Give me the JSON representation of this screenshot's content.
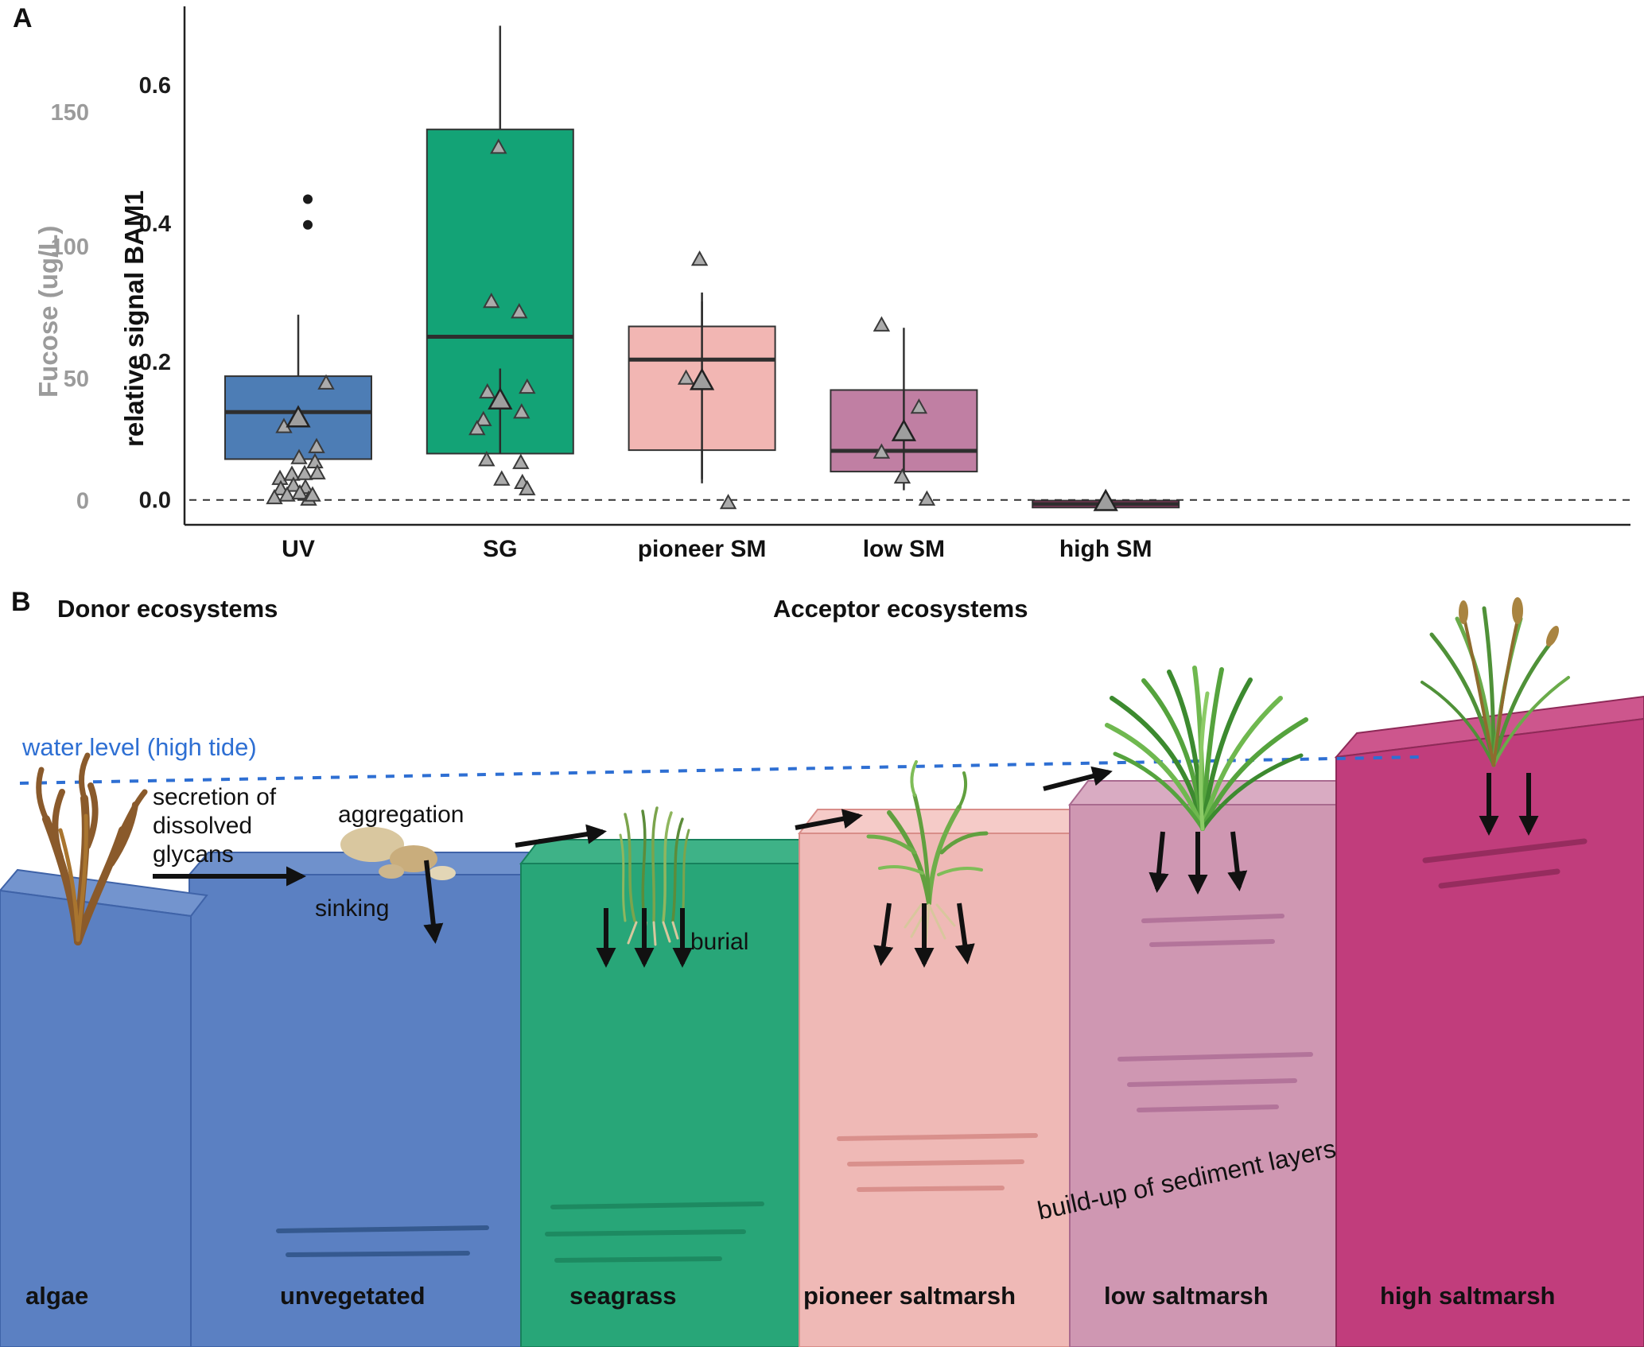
{
  "figure": {
    "panel_a_label": "A",
    "panel_b_label": "B"
  },
  "chart_data": {
    "type": "boxplot",
    "ylabel": "relative signal BAM1",
    "secondary_ylabel": "Fucose (ug/L)",
    "ylim": [
      -0.036,
      0.714
    ],
    "yticks": [
      {
        "label": "0.0",
        "value": 0.0
      },
      {
        "label": "0.2",
        "value": 0.2
      },
      {
        "label": "0.4",
        "value": 0.4
      },
      {
        "label": "0.6",
        "value": 0.6
      }
    ],
    "secondary_yticks": [
      {
        "label": "0",
        "value": 0.0
      },
      {
        "label": "50",
        "value": 0.177
      },
      {
        "label": "100",
        "value": 0.368
      },
      {
        "label": "150",
        "value": 0.562
      }
    ],
    "zero_dashed_line": 0.0,
    "categories": [
      "UV",
      "SG",
      "pioneer SM",
      "low SM",
      "high SM"
    ],
    "boxes": [
      {
        "category": "UV",
        "color": "#4d7db5",
        "q1": 0.059,
        "median": 0.127,
        "q3": 0.179,
        "whisker_low": null,
        "whisker_high": 0.268,
        "outliers": [
          0.435,
          0.398
        ]
      },
      {
        "category": "SG",
        "color": "#13a376",
        "q1": 0.067,
        "median": 0.236,
        "q3": 0.536,
        "whisker_low": null,
        "whisker_high": 0.686,
        "outliers": []
      },
      {
        "category": "pioneer SM",
        "color": "#f2b6b3",
        "q1": 0.072,
        "median": 0.203,
        "q3": 0.251,
        "whisker_low": 0.024,
        "whisker_high": 0.287,
        "outliers": []
      },
      {
        "category": "low SM",
        "color": "#c07fa3",
        "q1": 0.041,
        "median": 0.071,
        "q3": 0.159,
        "whisker_low": 0.014,
        "whisker_high": 0.249,
        "outliers": []
      },
      {
        "category": "high SM",
        "color": "#a8396b",
        "q1": -0.011,
        "median": -0.006,
        "q3": -0.001,
        "whisker_low": null,
        "whisker_high": null,
        "outliers": []
      }
    ],
    "means": [
      {
        "category": "UV",
        "value": 0.117,
        "err_low": null,
        "err_high": null
      },
      {
        "category": "SG",
        "value": 0.143,
        "err_low": 0.067,
        "err_high": 0.19
      },
      {
        "category": "pioneer SM",
        "value": 0.171,
        "err_low": 0.03,
        "err_high": 0.3
      },
      {
        "category": "low SM",
        "value": 0.097,
        "err_low": 0.033,
        "err_high": 0.16
      },
      {
        "category": "high SM",
        "value": -0.004,
        "err_low": null,
        "err_high": null
      }
    ],
    "points": [
      {
        "category": "UV",
        "values": [
          [
            35,
            0.168
          ],
          [
            -18,
            0.105
          ],
          [
            23,
            0.076
          ],
          [
            1,
            0.06
          ],
          [
            21,
            0.054
          ],
          [
            -23,
            0.03
          ],
          [
            -8,
            0.036
          ],
          [
            8,
            0.037
          ],
          [
            24,
            0.038
          ],
          [
            -22,
            0.015
          ],
          [
            -6,
            0.02
          ],
          [
            9,
            0.017
          ],
          [
            -30,
            0.002
          ],
          [
            -14,
            0.006
          ],
          [
            2,
            0.009
          ],
          [
            13,
            0.0
          ],
          [
            18,
            0.006
          ]
        ]
      },
      {
        "category": "SG",
        "values": [
          [
            -2,
            0.509
          ],
          [
            -11,
            0.286
          ],
          [
            24,
            0.271
          ],
          [
            -16,
            0.155
          ],
          [
            34,
            0.162
          ],
          [
            -21,
            0.115
          ],
          [
            27,
            0.126
          ],
          [
            -29,
            0.102
          ],
          [
            -17,
            0.057
          ],
          [
            2,
            0.029
          ],
          [
            26,
            0.053
          ],
          [
            28,
            0.024
          ],
          [
            34,
            0.015
          ]
        ]
      },
      {
        "category": "pioneer SM",
        "values": [
          [
            -3,
            0.347
          ],
          [
            -20,
            0.175
          ],
          [
            33,
            -0.005
          ]
        ]
      },
      {
        "category": "low SM",
        "values": [
          [
            -28,
            0.252
          ],
          [
            19,
            0.133
          ],
          [
            -28,
            0.068
          ],
          [
            -2,
            0.032
          ],
          [
            29,
            0.0
          ]
        ]
      },
      {
        "category": "high SM",
        "values": []
      }
    ]
  },
  "panel_b": {
    "donor_header": "Donor ecosystems",
    "acceptor_header": "Acceptor ecosystems",
    "water_level_label": "water level (high tide)",
    "water_level_color": "#2e6fd3",
    "secretion_label": "secretion of\ndissolved\nglycans",
    "aggregation_label": "aggregation",
    "sinking_label": "sinking",
    "burial_label": "burial",
    "buildup_label": "build-up of sediment layers",
    "blocks": [
      {
        "label": "algae",
        "color": "#5b80c2"
      },
      {
        "label": "unvegetated",
        "color": "#5b80c2"
      },
      {
        "label": "seagrass",
        "color": "#28a678"
      },
      {
        "label": "pioneer saltmarsh",
        "color": "#efb9b6"
      },
      {
        "label": "low saltmarsh",
        "color": "#cf97b2"
      },
      {
        "label": "high saltmarsh",
        "color": "#c13d7c"
      }
    ]
  }
}
